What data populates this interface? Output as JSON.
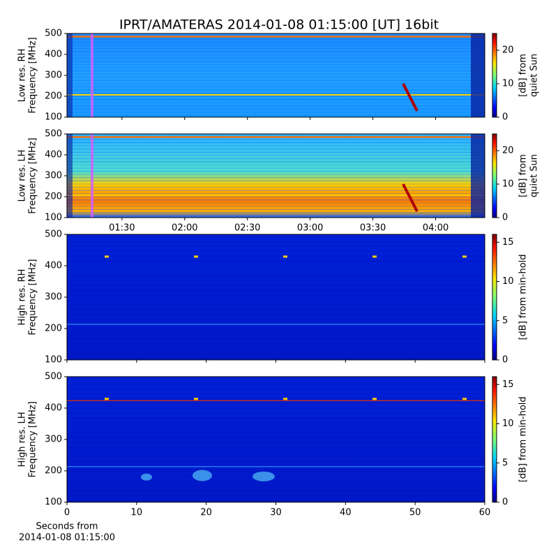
{
  "chart_data": [
    {
      "type": "spectrogram",
      "title": "IPRT/AMATERAS 2014-01-08 01:15:00 [UT]   16bit",
      "ylabel": [
        "Low res. RH",
        "Frequency [MHz]"
      ],
      "ylim": [
        100,
        500
      ],
      "yticks": [
        100,
        200,
        300,
        400,
        500
      ],
      "xlim": [
        63.7,
        263.5
      ],
      "xticks": [
        {
          "value": 90,
          "label": "01:30"
        },
        {
          "value": 120,
          "label": "02:00"
        },
        {
          "value": 150,
          "label": "02:30"
        },
        {
          "value": 180,
          "label": "03:00"
        },
        {
          "value": 210,
          "label": "03:30"
        },
        {
          "value": 240,
          "label": "04:00"
        }
      ],
      "colorbar_label": [
        "[dB] from",
        "quiet Sun"
      ],
      "clim": [
        0,
        25
      ],
      "cticks": [
        0,
        10,
        20
      ]
    },
    {
      "type": "spectrogram",
      "ylabel": [
        "Low res. LH",
        "Frequency [MHz]"
      ],
      "ylim": [
        100,
        500
      ],
      "yticks": [
        100,
        200,
        300,
        400,
        500
      ],
      "xlim": [
        63.7,
        263.5
      ],
      "xticks": [
        {
          "value": 90,
          "label": "01:30"
        },
        {
          "value": 120,
          "label": "02:00"
        },
        {
          "value": 150,
          "label": "02:30"
        },
        {
          "value": 180,
          "label": "03:00"
        },
        {
          "value": 210,
          "label": "03:30"
        },
        {
          "value": 240,
          "label": "04:00"
        }
      ],
      "colorbar_label": [
        "[dB] from",
        "quiet Sun"
      ],
      "clim": [
        0,
        25
      ],
      "cticks": [
        0,
        10,
        20
      ]
    },
    {
      "type": "spectrogram",
      "ylabel": [
        "High res. RH",
        "Frequency [MHz]"
      ],
      "ylim": [
        100,
        500
      ],
      "yticks": [
        100,
        200,
        300,
        400,
        500
      ],
      "xlim": [
        0,
        60
      ],
      "xticks": [
        0,
        10,
        20,
        30,
        40,
        50,
        60
      ],
      "colorbar_label": [
        "[dB] from min-hold"
      ],
      "clim": [
        0,
        16
      ],
      "cticks": [
        0,
        5,
        10,
        15
      ]
    },
    {
      "type": "spectrogram",
      "ylabel": [
        "High res. LH",
        "Frequency [MHz]"
      ],
      "ylim": [
        100,
        500
      ],
      "yticks": [
        100,
        200,
        300,
        400,
        500
      ],
      "xlim": [
        0,
        60
      ],
      "xticks": [
        0,
        10,
        20,
        30,
        40,
        50,
        60
      ],
      "xlabel": [
        "Seconds from",
        "2014-01-08 01:15:00"
      ],
      "colorbar_label": [
        "[dB] from min-hold"
      ],
      "clim": [
        0,
        16
      ],
      "cticks": [
        0,
        5,
        10,
        15
      ]
    }
  ]
}
